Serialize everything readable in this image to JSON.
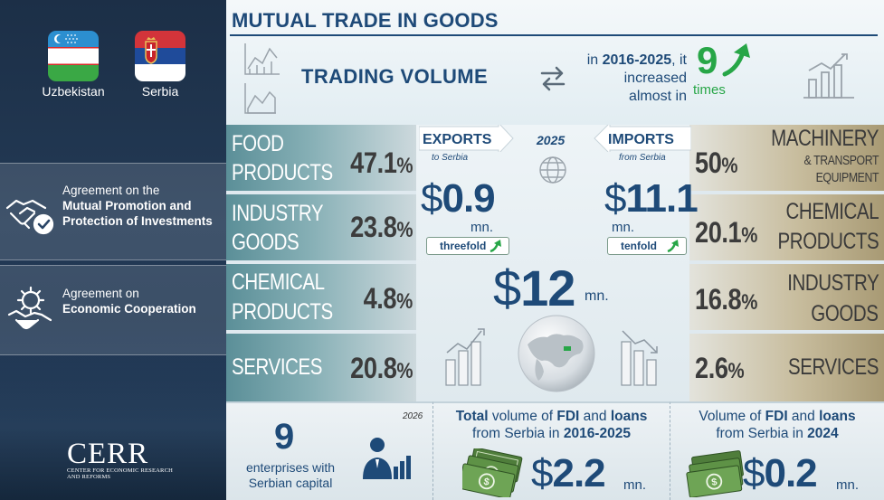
{
  "header": {
    "title": "MUTUAL TRADE IN GOODS",
    "trading_volume_label": "TRADING VOLUME",
    "increase_line1_prefix": "in ",
    "increase_period": "2016-2025",
    "increase_line1_suffix": ", it",
    "increase_line2": "increased",
    "increase_line3": "almost in",
    "multiplier": "9",
    "multiplier_unit": "times"
  },
  "countries": {
    "left": {
      "name": "Uzbekistan"
    },
    "right": {
      "name": "Serbia"
    }
  },
  "agreements": [
    {
      "prefix": "Agreement on the",
      "title": "Mutual Promotion and Protection of Investments",
      "icon": "handshake-check-icon"
    },
    {
      "prefix": "Agreement on",
      "title": "Economic Cooperation",
      "icon": "gear-handshake-icon"
    }
  ],
  "logo": {
    "text": "CERR",
    "subtitle": "CENTER FOR ECONOMIC RESEARCH AND REFORMS"
  },
  "exports": {
    "label": "EXPORTS",
    "note": "to Serbia",
    "value": "0.9",
    "currency": "$",
    "unit": "mn.",
    "growth": "threefold",
    "structure": [
      {
        "name_line1": "FOOD",
        "name_line2": "PRODUCTS",
        "pct": "47.1",
        "pct_sign": "%"
      },
      {
        "name_line1": "INDUSTRY",
        "name_line2": "GOODS",
        "pct": "23.8",
        "pct_sign": "%"
      },
      {
        "name_line1": "CHEMICAL",
        "name_line2": "PRODUCTS",
        "pct": "4.8",
        "pct_sign": "%"
      },
      {
        "name_line1": "SERVICES",
        "name_line2": "",
        "pct": "20.8",
        "pct_sign": "%"
      }
    ]
  },
  "imports": {
    "label": "IMPORTS",
    "note": "from Serbia",
    "value": "11.1",
    "currency": "$",
    "unit": "mn.",
    "growth": "tenfold",
    "structure": [
      {
        "name_line1": "MACHINERY",
        "name_line2": "& TRANSPORT",
        "name_line3": "EQUIPMENT",
        "pct": "50",
        "pct_sign": "%"
      },
      {
        "name_line1": "CHEMICAL",
        "name_line2": "PRODUCTS",
        "pct": "20.1",
        "pct_sign": "%"
      },
      {
        "name_line1": "INDUSTRY",
        "name_line2": "GOODS",
        "pct": "16.8",
        "pct_sign": "%"
      },
      {
        "name_line1": "SERVICES",
        "name_line2": "",
        "pct": "2.6",
        "pct_sign": "%"
      }
    ]
  },
  "center": {
    "year": "2025",
    "total_currency": "$",
    "total_value": "12",
    "total_unit": "mn."
  },
  "enterprises": {
    "year": "2026",
    "count": "9",
    "desc_line1": "enterprises with",
    "desc_line2": "Serbian capital"
  },
  "fdi_total": {
    "title_pre": "Total",
    "title_mid": " volume of ",
    "title_bold": "FDI",
    "title_and": " and ",
    "title_bold2": "loans",
    "title_line2_pre": "from Serbia in ",
    "title_line2_bold": "2016-2025",
    "currency": "$",
    "value": "2.2",
    "unit": "mn."
  },
  "fdi_2024": {
    "title_pre": "Volume of ",
    "title_bold": "FDI",
    "title_and": " and ",
    "title_bold2": "loans",
    "title_line2_pre": "from Serbia in ",
    "title_line2_bold": "2024",
    "currency": "$",
    "value": "0.2",
    "unit": "mn."
  },
  "colors": {
    "navy": "#1e4a78",
    "green": "#27a647",
    "export_strip": "#6e9ea5",
    "import_strip": "#b9ad89"
  }
}
